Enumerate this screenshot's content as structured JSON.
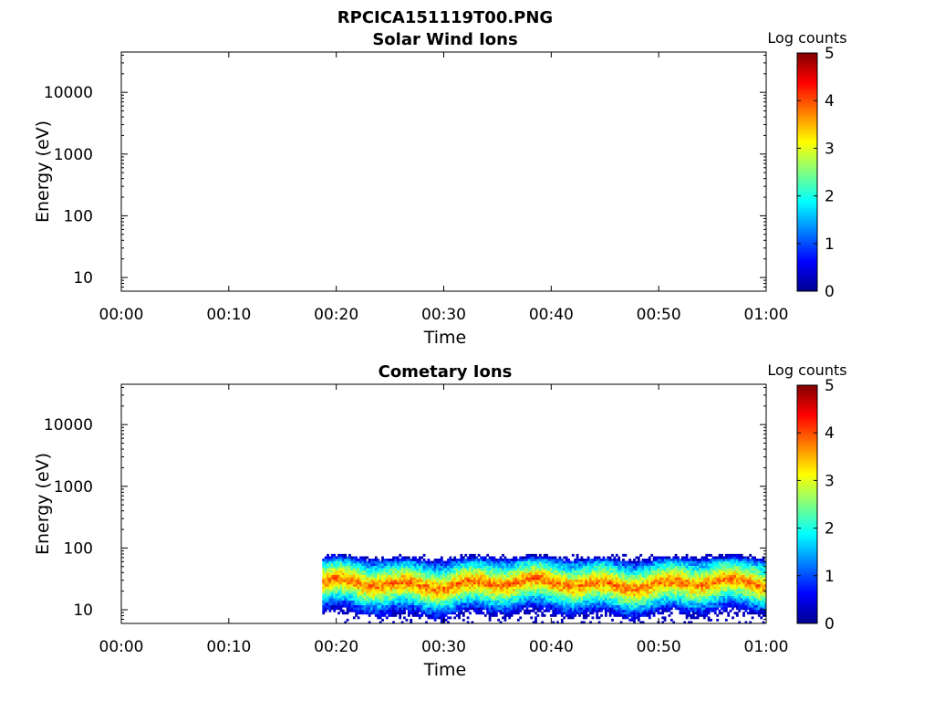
{
  "figure_title": "RPCICA151119T00.PNG",
  "colorbar": {
    "label": "Log counts",
    "range": [
      0,
      5
    ],
    "ticks": [
      "0",
      "1",
      "2",
      "3",
      "4",
      "5"
    ],
    "colormap": "jet"
  },
  "chart_data": [
    {
      "type": "heatmap",
      "title": "Solar Wind Ions",
      "xlabel": "Time",
      "ylabel": "Energy (eV)",
      "x_ticks": [
        "00:00",
        "00:10",
        "00:20",
        "00:30",
        "00:40",
        "00:50",
        "01:00"
      ],
      "x_range_min": [
        0,
        60
      ],
      "y_scale": "log",
      "y_range": [
        6,
        45000
      ],
      "y_ticks": [
        "10",
        "100",
        "1000",
        "10000"
      ],
      "data": "none"
    },
    {
      "type": "heatmap",
      "title": "Cometary Ions",
      "xlabel": "Time",
      "ylabel": "Energy (eV)",
      "x_ticks": [
        "00:00",
        "00:10",
        "00:20",
        "00:30",
        "00:40",
        "00:50",
        "01:00"
      ],
      "x_range_min": [
        0,
        60
      ],
      "y_scale": "log",
      "y_range": [
        6,
        45000
      ],
      "y_ticks": [
        "10",
        "100",
        "1000",
        "10000"
      ],
      "data_start_min": 18.7,
      "data_end_min": 60,
      "upper_edge_eV": 80,
      "peak_band_eV": [
        20,
        35
      ],
      "peak_log_counts": 3.9
    }
  ]
}
